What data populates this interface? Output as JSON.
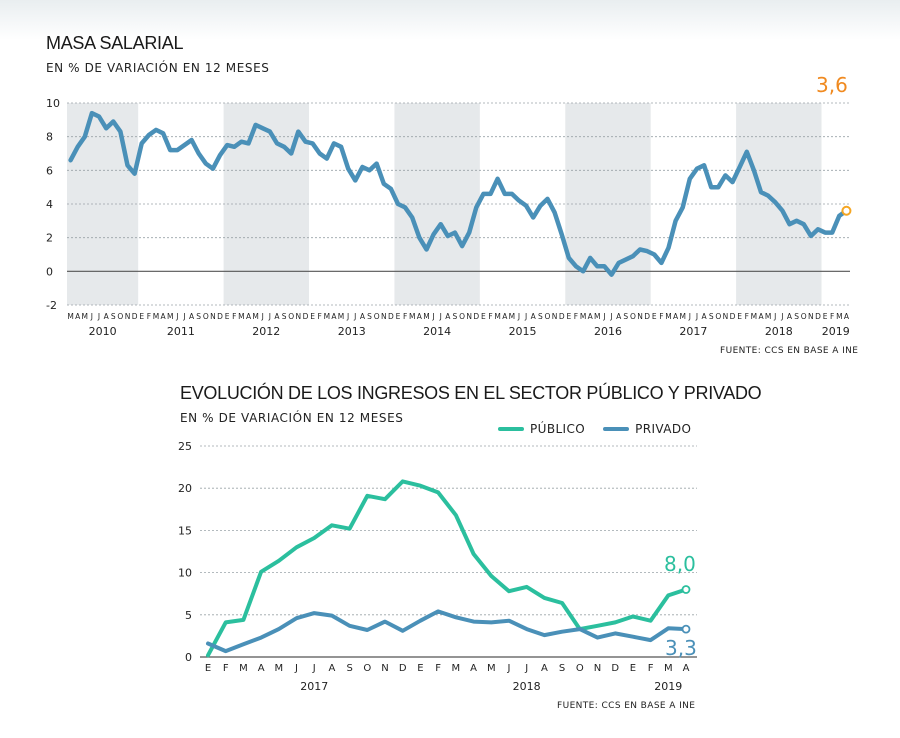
{
  "colors": {
    "line_blue": "#4a90b8",
    "line_green": "#2bbf9e",
    "shade": "#e6e9eb",
    "end_orange": "#f08a20",
    "end_marker": "#f5a623"
  },
  "chart1": {
    "title": "MASA SALARIAL",
    "subtitle": "EN % DE VARIACIÓN EN 12 MESES",
    "source": "FUENTE: CCS EN BASE A INE",
    "end_label": "3,6"
  },
  "chart2": {
    "title": "EVOLUCIÓN DE LOS INGRESOS EN EL SECTOR PÚBLICO Y PRIVADO",
    "subtitle": "EN % DE VARIACIÓN EN 12 MESES",
    "source": "FUENTE: CCS EN BASE A INE",
    "legend_publico": "PÚBLICO",
    "legend_privado": "PRIVADO",
    "end_label_publico": "8,0",
    "end_label_privado": "3,3"
  },
  "chart_data": [
    {
      "type": "line",
      "title": "MASA SALARIAL",
      "subtitle": "EN % DE VARIACIÓN EN 12 MESES",
      "ylim": [
        -2,
        10
      ],
      "yticks": [
        -2,
        0,
        2,
        4,
        6,
        8,
        10
      ],
      "grid": true,
      "month_letters_first_year": [
        "M",
        "A",
        "M",
        "J",
        "J",
        "A",
        "S",
        "O",
        "N",
        "D"
      ],
      "month_letters_year": [
        "E",
        "F",
        "M",
        "A",
        "M",
        "J",
        "J",
        "A",
        "S",
        "O",
        "N",
        "D"
      ],
      "month_letters_last_year": [
        "E",
        "F",
        "M",
        "A"
      ],
      "years": [
        "2010",
        "2011",
        "2012",
        "2013",
        "2014",
        "2015",
        "2016",
        "2017",
        "2018",
        "2019"
      ],
      "series": [
        {
          "values": [
            6.6,
            7.4,
            8.0,
            9.4,
            9.2,
            8.5,
            8.9,
            8.3,
            6.3,
            5.8,
            7.6,
            8.1,
            8.4,
            8.2,
            7.2,
            7.2,
            7.5,
            7.8,
            7.0,
            6.4,
            6.1,
            6.9,
            7.5,
            7.4,
            7.7,
            7.6,
            8.7,
            8.5,
            8.3,
            7.6,
            7.4,
            7.0,
            8.3,
            7.7,
            7.6,
            7.0,
            6.7,
            7.6,
            7.4,
            6.1,
            5.4,
            6.2,
            6.0,
            6.4,
            5.2,
            4.9,
            4.0,
            3.8,
            3.2,
            2.0,
            1.3,
            2.2,
            2.8,
            2.1,
            2.3,
            1.5,
            2.3,
            3.8,
            4.6,
            4.6,
            5.5,
            4.6,
            4.6,
            4.2,
            3.9,
            3.2,
            3.9,
            4.3,
            3.5,
            2.2,
            0.8,
            0.3,
            0.0,
            0.8,
            0.3,
            0.3,
            -0.2,
            0.5,
            0.7,
            0.9,
            1.3,
            1.2,
            1.0,
            0.5,
            1.4,
            3.0,
            3.8,
            5.5,
            6.1,
            6.3,
            5.0,
            5.0,
            5.7,
            5.3,
            6.2,
            7.1,
            6.0,
            4.7,
            4.5,
            4.1,
            3.6,
            2.8,
            3.0,
            2.8,
            2.1,
            2.5,
            2.3,
            2.3,
            3.3,
            3.6
          ]
        }
      ],
      "end_value": "3,6"
    },
    {
      "type": "line",
      "title": "EVOLUCIÓN DE LOS INGRESOS EN EL SECTOR PÚBLICO Y PRIVADO",
      "subtitle": "EN % DE VARIACIÓN EN 12 MESES",
      "ylim": [
        0,
        25
      ],
      "yticks": [
        0,
        5,
        10,
        15,
        20,
        25
      ],
      "grid": true,
      "categories": [
        "E",
        "F",
        "M",
        "A",
        "M",
        "J",
        "J",
        "A",
        "S",
        "O",
        "N",
        "D",
        "E",
        "F",
        "M",
        "A",
        "M",
        "J",
        "J",
        "A",
        "S",
        "O",
        "N",
        "D",
        "E",
        "F",
        "M",
        "A"
      ],
      "year_labels": [
        {
          "label": "2017",
          "at": 6
        },
        {
          "label": "2018",
          "at": 18
        },
        {
          "label": "2019",
          "at": 26
        }
      ],
      "series": [
        {
          "name": "PÚBLICO",
          "values": [
            0.2,
            4.1,
            4.4,
            10.1,
            11.4,
            13.0,
            14.1,
            15.6,
            15.2,
            19.1,
            18.7,
            20.8,
            20.3,
            19.5,
            16.8,
            12.2,
            9.6,
            7.8,
            8.3,
            7.0,
            6.4,
            3.3,
            3.7,
            4.1,
            4.8,
            4.3,
            7.3,
            8.0
          ],
          "end_label": "8,0"
        },
        {
          "name": "PRIVADO",
          "values": [
            1.6,
            0.7,
            1.5,
            2.3,
            3.3,
            4.6,
            5.2,
            4.9,
            3.7,
            3.2,
            4.2,
            3.1,
            4.3,
            5.4,
            4.7,
            4.2,
            4.1,
            4.3,
            3.3,
            2.6,
            3.0,
            3.3,
            2.3,
            2.8,
            2.4,
            2.0,
            3.4,
            3.3
          ],
          "end_label": "3,3"
        }
      ]
    }
  ]
}
